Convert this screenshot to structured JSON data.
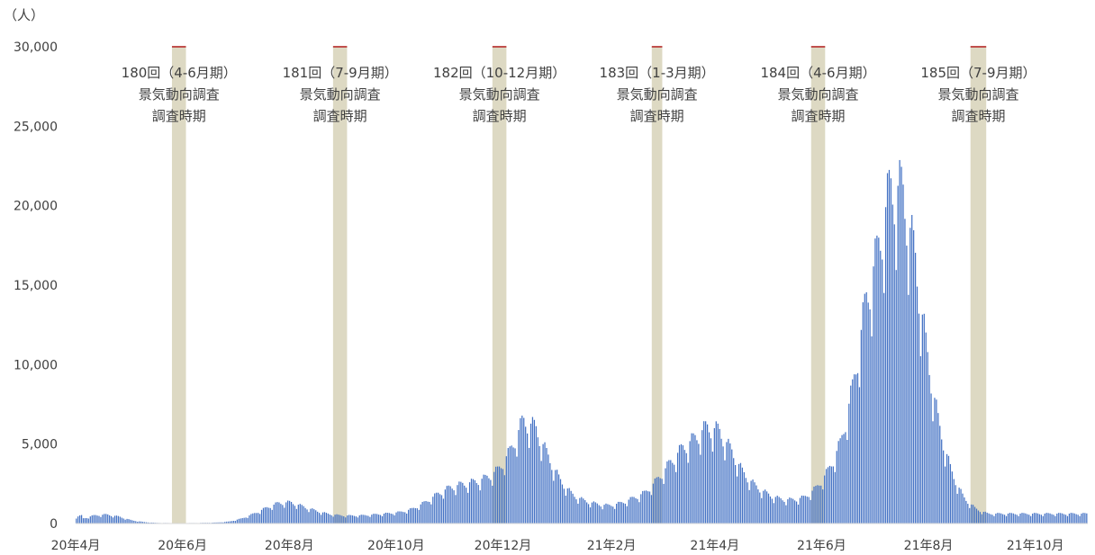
{
  "chart_data": {
    "type": "bar",
    "title": "",
    "xlabel": "",
    "ylabel": "（人）",
    "ylim": [
      0,
      30000
    ],
    "y_ticks": [
      "0",
      "5,000",
      "10,000",
      "15,000",
      "20,000",
      "25,000",
      "30,000"
    ],
    "x_ticks": [
      "20年4月",
      "20年6月",
      "20年8月",
      "20年10月",
      "20年12月",
      "21年2月",
      "21年4月",
      "21年6月",
      "21年8月",
      "21年10月"
    ],
    "x_range": [
      "2020-04-01",
      "2021-10-31"
    ],
    "bar_color": "#4472c4",
    "band_color": "#ddd9c3",
    "band_cap_color": "#c0504d",
    "grid": false,
    "legend": "none",
    "series": [
      {
        "values_weekly": [
          300,
          500,
          550,
          420,
          200,
          90,
          40,
          30,
          25,
          30,
          40,
          60,
          120,
          300,
          600,
          950,
          1250,
          1300,
          1050,
          800,
          600,
          500,
          480,
          500,
          560,
          620,
          700,
          900,
          1300,
          1800,
          2200,
          2400,
          2550,
          2800,
          3300,
          4500,
          6300,
          5900,
          4200,
          2700,
          1800,
          1400,
          1200,
          1100,
          1250,
          1550,
          1900,
          2700,
          3700,
          4600,
          5200,
          5900,
          5700,
          4500,
          3100,
          2300,
          1800,
          1500,
          1450,
          1600,
          2200,
          3300,
          5000,
          8500,
          13500,
          16700,
          20500,
          20400,
          16500,
          10500,
          6000,
          3200,
          1600,
          900,
          600
        ]
      }
    ],
    "survey_bands": [
      {
        "label_1": "180回（4-6月期）",
        "label_2": "景気動向調査",
        "label_3": "調査時期",
        "start": "2020-05-26",
        "end": "2020-06-03"
      },
      {
        "label_1": "181回（7-9月期）",
        "label_2": "景気動向調査",
        "label_3": "調査時期",
        "start": "2020-08-26",
        "end": "2020-09-03"
      },
      {
        "label_1": "182回（10-12月期）",
        "label_2": "景気動向調査",
        "label_3": "調査時期",
        "start": "2020-11-25",
        "end": "2020-12-03"
      },
      {
        "label_1": "183回（1-3月期）",
        "label_2": "景気動向調査",
        "label_3": "調査時期",
        "start": "2021-02-24",
        "end": "2021-03-02"
      },
      {
        "label_1": "184回（4-6月期）",
        "label_2": "景気動向調査",
        "label_3": "調査時期",
        "start": "2021-05-26",
        "end": "2021-06-03"
      },
      {
        "label_1": "185回（7-9月期）",
        "label_2": "景気動向調査",
        "label_3": "調査時期",
        "start": "2021-08-25",
        "end": "2021-09-03"
      }
    ]
  }
}
